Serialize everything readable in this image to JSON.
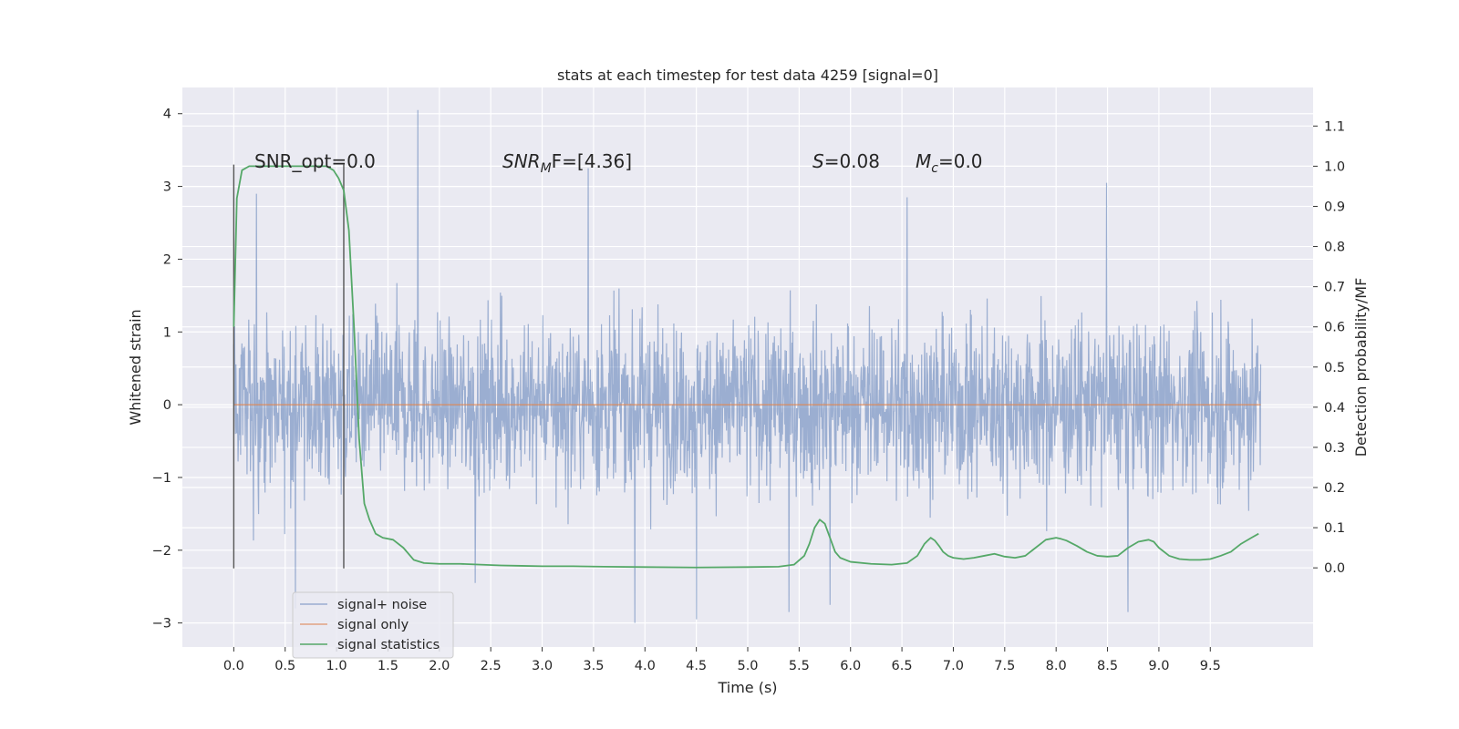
{
  "chart_data": {
    "type": "line",
    "title": "stats at each timestep for test data 4259 [signal=0]",
    "xlabel": "Time (s)",
    "ylabel_left": "Whitened strain",
    "ylabel_right": "Detection probability/MF",
    "xlim": [
      -0.5,
      10.5
    ],
    "ylim_left": [
      -3.33,
      4.36
    ],
    "ylim_right": [
      -0.197,
      1.196
    ],
    "x_ticks": [
      "0.0",
      "0.5",
      "1.0",
      "1.5",
      "2.0",
      "2.5",
      "3.0",
      "3.5",
      "4.0",
      "4.5",
      "5.0",
      "5.5",
      "6.0",
      "6.5",
      "7.0",
      "7.5",
      "8.0",
      "8.5",
      "9.0",
      "9.5"
    ],
    "x_tick_values": [
      0,
      0.5,
      1,
      1.5,
      2,
      2.5,
      3,
      3.5,
      4,
      4.5,
      5,
      5.5,
      6,
      6.5,
      7,
      7.5,
      8,
      8.5,
      9,
      9.5
    ],
    "y_left_ticks": [
      {
        "v": 4,
        "label": "4"
      },
      {
        "v": 3,
        "label": "3"
      },
      {
        "v": 2,
        "label": "2"
      },
      {
        "v": 1,
        "label": "1"
      },
      {
        "v": 0,
        "label": "0"
      },
      {
        "v": -1,
        "label": "−1"
      },
      {
        "v": -2,
        "label": "−2"
      },
      {
        "v": -3,
        "label": "−3"
      }
    ],
    "y_right_ticks": [
      {
        "v": 1.1,
        "label": "1.1"
      },
      {
        "v": 1.0,
        "label": "1.0"
      },
      {
        "v": 0.9,
        "label": "0.9"
      },
      {
        "v": 0.8,
        "label": "0.8"
      },
      {
        "v": 0.7,
        "label": "0.7"
      },
      {
        "v": 0.6,
        "label": "0.6"
      },
      {
        "v": 0.5,
        "label": "0.5"
      },
      {
        "v": 0.4,
        "label": "0.4"
      },
      {
        "v": 0.3,
        "label": "0.3"
      },
      {
        "v": 0.2,
        "label": "0.2"
      },
      {
        "v": 0.1,
        "label": "0.1"
      },
      {
        "v": 0.0,
        "label": "0.0"
      }
    ],
    "annotations": {
      "snr_opt": "SNR_opt=0.0",
      "snr_mf_prefix": "SNR",
      "snr_mf_sub": "M",
      "snr_mf_suffix": "F=[4.36]",
      "s_label": "S",
      "s_value": "=0.08",
      "mc_label": "M",
      "mc_sub": "c",
      "mc_value": "=0.0"
    },
    "vertical_markers_x": [
      0.0,
      1.07
    ],
    "vertical_markers_range_left": [
      -2.25,
      3.3
    ],
    "series": [
      {
        "name": "signal+ noise",
        "color": "#4c72b0",
        "note_shape": "noise",
        "x_range": [
          0.0,
          9.99
        ],
        "band_range_left": [
          -2.2,
          2.9
        ],
        "spikes": [
          [
            1.79,
            4.05
          ],
          [
            3.45,
            3.25
          ],
          [
            8.49,
            3.05
          ],
          [
            6.55,
            2.85
          ],
          [
            0.22,
            2.9
          ],
          [
            3.9,
            -3.0
          ],
          [
            4.5,
            -2.95
          ],
          [
            5.4,
            -2.85
          ],
          [
            8.7,
            -2.85
          ],
          [
            5.8,
            -2.75
          ],
          [
            0.6,
            -2.8
          ],
          [
            2.35,
            -2.45
          ]
        ]
      },
      {
        "name": "signal only",
        "color": "#dd8452",
        "x": [
          0.0,
          9.99
        ],
        "y": [
          0.0,
          0.0
        ]
      },
      {
        "name": "signal statistics",
        "color": "#55a868",
        "axis": "right",
        "x": [
          0.0,
          0.03,
          0.08,
          0.15,
          0.25,
          0.4,
          0.6,
          0.8,
          0.9,
          0.97,
          1.02,
          1.07,
          1.12,
          1.17,
          1.22,
          1.27,
          1.32,
          1.38,
          1.45,
          1.55,
          1.65,
          1.75,
          1.85,
          2.0,
          2.2,
          2.4,
          2.6,
          2.8,
          3.0,
          3.3,
          3.6,
          4.0,
          4.5,
          5.0,
          5.3,
          5.45,
          5.55,
          5.6,
          5.65,
          5.7,
          5.75,
          5.8,
          5.85,
          5.9,
          6.0,
          6.2,
          6.4,
          6.55,
          6.65,
          6.72,
          6.78,
          6.82,
          6.86,
          6.9,
          6.95,
          7.0,
          7.1,
          7.2,
          7.3,
          7.4,
          7.5,
          7.6,
          7.7,
          7.8,
          7.9,
          8.0,
          8.05,
          8.1,
          8.2,
          8.3,
          8.4,
          8.5,
          8.6,
          8.7,
          8.8,
          8.9,
          8.95,
          9.0,
          9.1,
          9.2,
          9.3,
          9.4,
          9.5,
          9.6,
          9.7,
          9.8,
          9.9,
          9.97
        ],
        "y": [
          0.6,
          0.92,
          0.99,
          1.0,
          1.0,
          1.0,
          1.0,
          1.0,
          1.0,
          0.99,
          0.97,
          0.94,
          0.84,
          0.6,
          0.32,
          0.16,
          0.12,
          0.085,
          0.075,
          0.07,
          0.05,
          0.02,
          0.012,
          0.01,
          0.01,
          0.008,
          0.006,
          0.005,
          0.004,
          0.004,
          0.003,
          0.002,
          0.001,
          0.002,
          0.003,
          0.008,
          0.03,
          0.06,
          0.1,
          0.12,
          0.11,
          0.075,
          0.04,
          0.025,
          0.015,
          0.01,
          0.008,
          0.012,
          0.03,
          0.06,
          0.075,
          0.068,
          0.055,
          0.04,
          0.03,
          0.025,
          0.022,
          0.025,
          0.03,
          0.035,
          0.028,
          0.025,
          0.03,
          0.05,
          0.07,
          0.075,
          0.072,
          0.068,
          0.055,
          0.04,
          0.03,
          0.028,
          0.03,
          0.05,
          0.065,
          0.07,
          0.065,
          0.05,
          0.03,
          0.022,
          0.02,
          0.02,
          0.022,
          0.03,
          0.04,
          0.06,
          0.075,
          0.085
        ]
      }
    ],
    "grid": true,
    "legend_position": "lower-left"
  }
}
